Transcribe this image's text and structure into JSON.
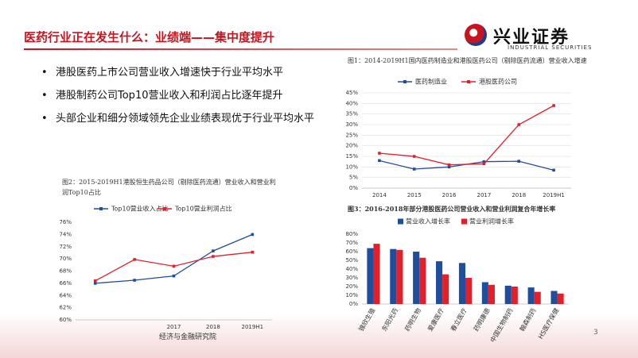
{
  "header": {
    "title": "医药行业正在发生什么：业绩端——集中度提升",
    "logo": "兴业证券",
    "logo_en": "INDUSTRIAL SECURITIES"
  },
  "bullets": [
    "港股医药上市公司营业收入增速快于行业平均水平",
    "港股制药公司Top10营业收入和利润占比逐年提升",
    "头部企业和细分领域领先企业业绩表现优于行业平均水平"
  ],
  "footer": "经济与金融研究院",
  "page_number": "3",
  "chart_data": [
    {
      "type": "line",
      "title": "图1：2014-2019H1国内医药制造业和港股医药公司（剔除医药流通）营业收入增速",
      "categories": [
        "2014",
        "2015",
        "2016",
        "2017",
        "2018",
        "2019H1"
      ],
      "series": [
        {
          "name": "医药制造业",
          "color": "#1f4e9c",
          "values": [
            13,
            9,
            10,
            12.5,
            12.7,
            8.5
          ]
        },
        {
          "name": "港股医药公司",
          "color": "#e3202a",
          "values": [
            16.5,
            15,
            11,
            11.5,
            30,
            39
          ]
        }
      ],
      "ylim": [
        0,
        45
      ],
      "yticks": [
        {
          "value": 0,
          "label": "0%"
        },
        {
          "value": 5,
          "label": "5%"
        },
        {
          "value": 10,
          "label": "10%"
        },
        {
          "value": 15,
          "label": "15%"
        },
        {
          "value": 20,
          "label": "20%"
        },
        {
          "value": 25,
          "label": "25%"
        },
        {
          "value": 30,
          "label": "30%"
        },
        {
          "value": 35,
          "label": "35%"
        },
        {
          "value": 40,
          "label": "40%"
        },
        {
          "value": 45,
          "label": "45%"
        }
      ],
      "grid": true
    },
    {
      "type": "line",
      "title": "图2：2015-2019H1港股恒生药品公司（剔除医药流通）营业收入和营业利润Top10占比",
      "categories": [
        null,
        null,
        "2017",
        "2018",
        "2019H1"
      ],
      "series": [
        {
          "name": "Top10营业收入占比",
          "color": "#1f4e9c",
          "values": [
            66,
            66.5,
            67.2,
            71.3,
            74
          ]
        },
        {
          "name": "Top10营业利润占比",
          "color": "#e3202a",
          "values": [
            66.4,
            69.9,
            68.8,
            70.4,
            71.1
          ]
        }
      ],
      "ylim": [
        60,
        76
      ],
      "yticks": [
        {
          "value": 60,
          "label": "60%"
        },
        {
          "value": 62,
          "label": "62%"
        },
        {
          "value": 64,
          "label": "64%"
        },
        {
          "value": 66,
          "label": "66%"
        },
        {
          "value": 68,
          "label": "68%"
        },
        {
          "value": 70,
          "label": "70%"
        },
        {
          "value": 72,
          "label": "72%"
        },
        {
          "value": 74,
          "label": "74%"
        },
        {
          "value": 76,
          "label": "76%"
        }
      ],
      "grid": false
    },
    {
      "type": "bar",
      "title": "图3：2016-2018年部分港股医药公司营业收入和营业利润复合年增长率",
      "categories": [
        "锦欣生殖",
        "东阳光药",
        "药明生物",
        "爱康医疗",
        "春立医疗",
        "药明康德",
        "中国生物制药",
        "翰森制药",
        "HS医疗保健"
      ],
      "series": [
        {
          "name": "营业收入增长率",
          "color": "#1f4e9c",
          "values": [
            64,
            63,
            60,
            49,
            47,
            25,
            21,
            19,
            15
          ]
        },
        {
          "name": "营业利润增长率",
          "color": "#e3202a",
          "values": [
            69,
            62,
            53,
            34,
            30,
            22,
            20,
            14,
            12
          ]
        }
      ],
      "ylim": [
        0,
        80
      ],
      "yticks": [
        {
          "value": 0,
          "label": "0%"
        },
        {
          "value": 10,
          "label": "10%"
        },
        {
          "value": 20,
          "label": "20%"
        },
        {
          "value": 30,
          "label": "30%"
        },
        {
          "value": 40,
          "label": "40%"
        },
        {
          "value": 50,
          "label": "50%"
        },
        {
          "value": 60,
          "label": "60%"
        },
        {
          "value": 70,
          "label": "70%"
        },
        {
          "value": 80,
          "label": "80%"
        }
      ],
      "grid": false
    }
  ]
}
